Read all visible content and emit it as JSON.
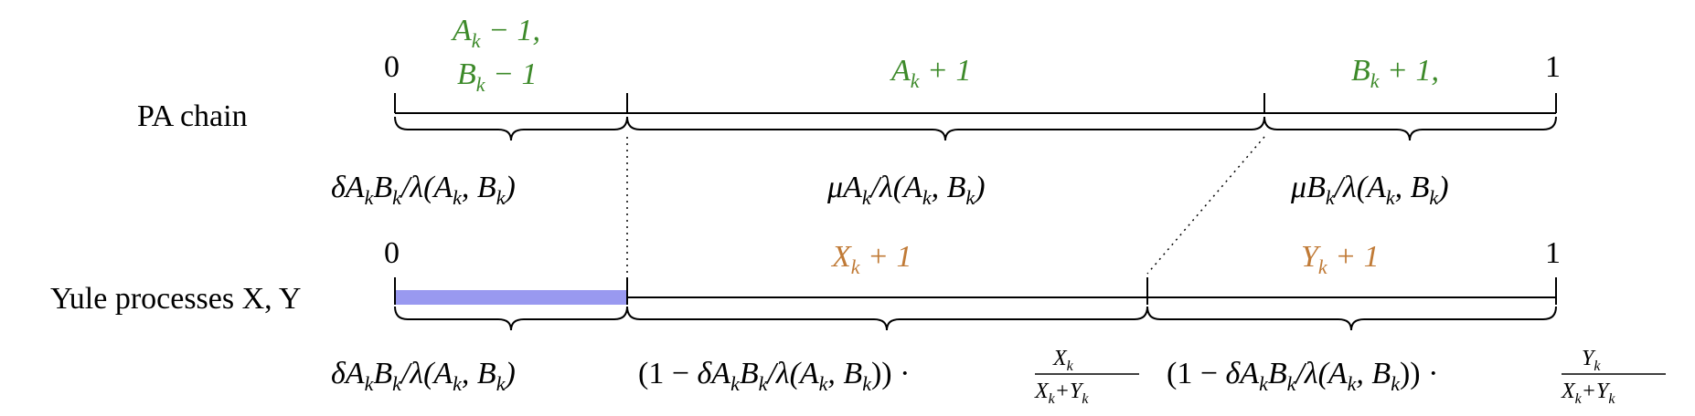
{
  "diagram": {
    "pa_chain": {
      "row_label": "PA chain",
      "tick_start": "0",
      "tick_end": "1",
      "segments": [
        {
          "top_label_line1": "A_k − 1,",
          "top_label_line2": "B_k − 1",
          "bottom_label": "δA_kB_k/λ(A_k, B_k)"
        },
        {
          "top_label": "A_k + 1",
          "bottom_label": "μA_k/λ(A_k, B_k)"
        },
        {
          "top_label": "B_k + 1,",
          "bottom_label": "μB_k/λ(A_k, B_k)"
        }
      ]
    },
    "yule": {
      "row_label": "Yule processes X, Y",
      "tick_start": "0",
      "tick_end": "1",
      "segments": [
        {
          "bottom_label": "δA_kB_k/λ(A_k, B_k)"
        },
        {
          "top_label": "X_k + 1",
          "bottom_label": "(1 − δA_kB_k/λ(A_k, B_k)) · X_k/(X_k+Y_k)"
        },
        {
          "top_label": "Y_k + 1",
          "bottom_label": "(1 − δA_kB_k/λ(A_k, B_k)) · Y_k/(X_k+Y_k)"
        }
      ]
    },
    "colors": {
      "pa_event": "#3d8a2a",
      "yule_event": "#c07a36",
      "highlight_bar": "#9999f0",
      "line": "#000000"
    }
  }
}
